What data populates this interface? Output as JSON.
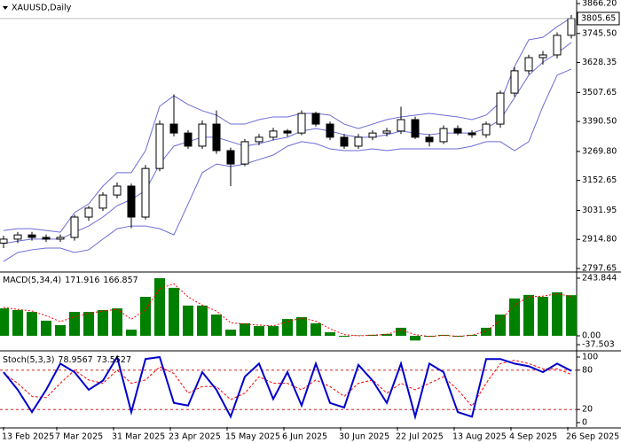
{
  "chart_data": [
    {
      "type": "candlestick",
      "title": "XAUUSD,Daily",
      "xlim": [
        -0.25,
        40.375
      ],
      "xticks": [
        {
          "value": 0,
          "label": "13 Feb 2025"
        },
        {
          "value": 3.75,
          "label": "7 Mar 2025"
        },
        {
          "value": 7.75,
          "label": "31 Mar 2025"
        },
        {
          "value": 11.75,
          "label": "23 Apr 2025"
        },
        {
          "value": 15.75,
          "label": "15 May 2025"
        },
        {
          "value": 19.75,
          "label": "6 Jun 2025"
        },
        {
          "value": 23.75,
          "label": "30 Jun 2025"
        },
        {
          "value": 27.75,
          "label": "22 Jul 2025"
        },
        {
          "value": 31.75,
          "label": "13 Aug 2025"
        },
        {
          "value": 35.75,
          "label": "4 Sep 2025"
        },
        {
          "value": 39.75,
          "label": "26 Sep 2025"
        }
      ],
      "ylim": [
        2787,
        3880.5
      ],
      "yticks": [
        {
          "value": 3866.2,
          "label": "3866.20"
        },
        {
          "value": 3745.5,
          "label": "3745.50"
        },
        3628.35,
        3507.65,
        {
          "value": 3390.5,
          "label": "3390.50"
        },
        {
          "value": 3269.8,
          "label": "3269.80"
        },
        3152.65,
        3031.95,
        {
          "value": 2914.8,
          "label": "2914.80"
        },
        2797.65
      ],
      "last_price": 3805.65,
      "open": [
        2900,
        2916,
        2933,
        2923,
        2916,
        2923,
        3005,
        3041,
        3094,
        3130,
        3005,
        3201,
        3380,
        3344,
        3291,
        3380,
        3273,
        3219,
        3309,
        3327,
        3352,
        3344,
        3423,
        3380,
        3327,
        3291,
        3327,
        3344,
        3352,
        3398,
        3327,
        3309,
        3362,
        3344,
        3337,
        3380,
        3505,
        3595,
        3648,
        3659,
        3738
      ],
      "high": [
        2930,
        2945,
        2945,
        2935,
        2935,
        3015,
        3050,
        3105,
        3145,
        3140,
        3215,
        3395,
        3500,
        3355,
        3395,
        3435,
        3285,
        3320,
        3340,
        3365,
        3360,
        3435,
        3430,
        3390,
        3340,
        3340,
        3355,
        3365,
        3450,
        3410,
        3340,
        3375,
        3375,
        3355,
        3390,
        3515,
        3610,
        3660,
        3675,
        3750,
        3820
      ],
      "low": [
        2880,
        2900,
        2910,
        2905,
        2905,
        2910,
        2990,
        3030,
        3080,
        2960,
        2995,
        3190,
        3330,
        3280,
        3280,
        3260,
        3130,
        3210,
        3295,
        3315,
        3330,
        3335,
        3370,
        3315,
        3280,
        3280,
        3315,
        3330,
        3340,
        3320,
        3290,
        3300,
        3335,
        3325,
        3325,
        3365,
        3490,
        3580,
        3620,
        3645,
        3725
      ],
      "close": [
        2916,
        2933,
        2923,
        2916,
        2923,
        3005,
        3041,
        3094,
        3130,
        3005,
        3201,
        3380,
        3344,
        3291,
        3380,
        3273,
        3219,
        3309,
        3327,
        3352,
        3344,
        3423,
        3380,
        3327,
        3291,
        3327,
        3344,
        3352,
        3398,
        3327,
        3309,
        3362,
        3344,
        3337,
        3380,
        3505,
        3595,
        3648,
        3659,
        3738,
        3805.65
      ],
      "band_color": "#6b6bd6",
      "bands": {
        "upper": [
          2951,
          2958,
          2958,
          2951,
          2944,
          3023,
          3058,
          3130,
          3184,
          3184,
          3273,
          3452,
          3494,
          3459,
          3434,
          3416,
          3380,
          3380,
          3398,
          3409,
          3409,
          3423,
          3423,
          3416,
          3380,
          3362,
          3380,
          3398,
          3409,
          3416,
          3423,
          3416,
          3409,
          3398,
          3416,
          3469,
          3612,
          3720,
          3730,
          3773,
          3809
        ],
        "middle": [
          2898,
          2908,
          2916,
          2916,
          2916,
          2944,
          2969,
          3005,
          3051,
          3076,
          3112,
          3219,
          3291,
          3309,
          3327,
          3327,
          3309,
          3291,
          3301,
          3316,
          3327,
          3352,
          3362,
          3352,
          3337,
          3327,
          3327,
          3337,
          3352,
          3344,
          3337,
          3344,
          3344,
          3344,
          3362,
          3398,
          3487,
          3577,
          3630,
          3666,
          3709
        ],
        "lower": [
          2826,
          2862,
          2873,
          2880,
          2880,
          2862,
          2873,
          2916,
          2958,
          2969,
          2969,
          2958,
          2933,
          3058,
          3184,
          3219,
          3209,
          3219,
          3237,
          3255,
          3291,
          3309,
          3301,
          3280,
          3273,
          3273,
          3280,
          3273,
          3280,
          3280,
          3280,
          3280,
          3280,
          3291,
          3309,
          3309,
          3273,
          3309,
          3452,
          3577,
          3602
        ]
      }
    },
    {
      "type": "bar",
      "title": "MACD(5,34,4)",
      "ylim": [
        -60,
        266.3
      ],
      "yticks": [
        243.844,
        {
          "value": 0,
          "label": "0.00"
        },
        -37.503
      ],
      "color": "#008000",
      "signal_color": "#ff0000",
      "histogram": [
        116,
        109,
        101,
        64,
        45,
        101,
        101,
        109,
        116,
        26,
        165,
        243.844,
        203,
        128,
        128,
        90,
        26,
        53,
        41,
        41,
        71,
        79,
        53,
        15,
        -4,
        2,
        4,
        8,
        34,
        -20,
        -4,
        4,
        -4,
        4,
        34,
        90,
        158,
        173,
        165,
        184,
        171.916
      ],
      "signal": [
        120,
        112,
        105,
        85,
        60,
        80,
        95,
        105,
        112,
        70,
        110,
        200,
        220,
        165,
        130,
        105,
        55,
        50,
        45,
        42,
        60,
        75,
        62,
        30,
        5,
        0,
        3,
        6,
        25,
        5,
        -3,
        2,
        -2,
        2,
        20,
        65,
        130,
        165,
        168,
        178,
        166.857
      ]
    },
    {
      "type": "line",
      "title": "Stoch(5,3,3)",
      "ylim": [
        -6.8,
        108.1
      ],
      "yticks": [
        100,
        80,
        20,
        0
      ],
      "levels": [
        80,
        20
      ],
      "k_color": "#0000cc",
      "d_color": "#ff0000",
      "k": [
        77,
        50,
        16,
        50,
        90,
        77,
        50,
        64,
        100,
        16,
        97,
        100,
        30,
        26,
        77,
        50,
        9,
        70,
        90,
        36,
        77,
        26,
        90,
        30,
        23,
        88,
        64,
        30,
        90,
        9,
        90,
        77,
        16,
        9,
        97,
        97,
        90,
        86,
        77,
        90,
        78.9567
      ],
      "d": [
        75,
        60,
        40,
        38,
        60,
        80,
        65,
        60,
        80,
        60,
        65,
        85,
        75,
        45,
        55,
        55,
        35,
        45,
        70,
        60,
        60,
        50,
        65,
        55,
        40,
        60,
        65,
        45,
        60,
        50,
        60,
        70,
        50,
        25,
        60,
        90,
        95,
        90,
        82,
        82,
        73.5527
      ]
    }
  ]
}
